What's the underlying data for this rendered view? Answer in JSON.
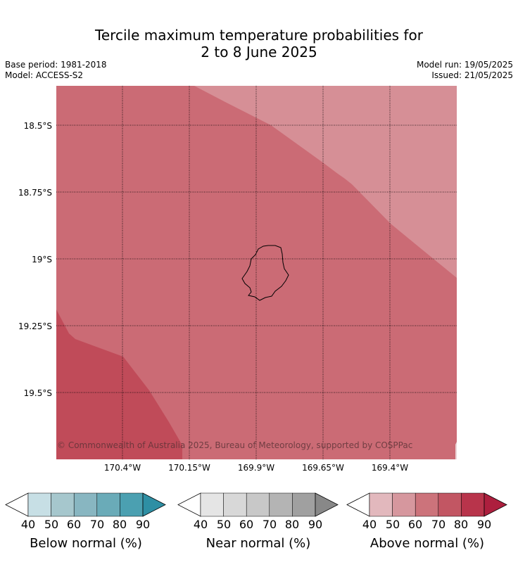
{
  "title": {
    "line1": "Tercile maximum temperature probabilities for",
    "line2": "2 to 8 June 2025"
  },
  "info": {
    "base_period": "Base period: 1981-2018",
    "model": "Model: ACCESS-S2",
    "model_run": "Model run: 19/05/2025",
    "issued": "Issued: 21/05/2025"
  },
  "map": {
    "lat_labels": [
      "18.5°S",
      "18.75°S",
      "19°S",
      "19.25°S",
      "19.5°S"
    ],
    "lon_labels": [
      "170.4°W",
      "170.15°W",
      "169.9°W",
      "169.65°W",
      "169.4°W"
    ],
    "copyright": "© Commonwealth of Australia 2025, Bureau of Meteorology, supported by COSPPac",
    "regions": [
      {
        "category": "above",
        "probability_band": "50-60",
        "color": "#d68f96"
      },
      {
        "category": "above",
        "probability_band": "60-70",
        "color": "#cb6b75"
      },
      {
        "category": "above",
        "probability_band": "70-80",
        "color": "#c04b59"
      }
    ]
  },
  "colorbars": [
    {
      "label": "Below normal (%)",
      "ticks": [
        "40",
        "50",
        "60",
        "70",
        "80",
        "90"
      ],
      "colors": [
        "#ffffff",
        "#c7dfe5",
        "#a6c7cd",
        "#88b6c1",
        "#6aabb8",
        "#4ba0b1",
        "#2e8fa4"
      ]
    },
    {
      "label": "Near normal (%)",
      "ticks": [
        "40",
        "50",
        "60",
        "70",
        "80",
        "90"
      ],
      "colors": [
        "#ffffff",
        "#e5e5e5",
        "#d8d8d8",
        "#c8c8c8",
        "#b4b4b4",
        "#a0a0a0",
        "#888888"
      ]
    },
    {
      "label": "Above normal (%)",
      "ticks": [
        "40",
        "50",
        "60",
        "70",
        "80",
        "90"
      ],
      "colors": [
        "#ffffff",
        "#e2b8bd",
        "#d6979e",
        "#cc737b",
        "#c25663",
        "#b8344b",
        "#ad1f3e"
      ]
    }
  ]
}
